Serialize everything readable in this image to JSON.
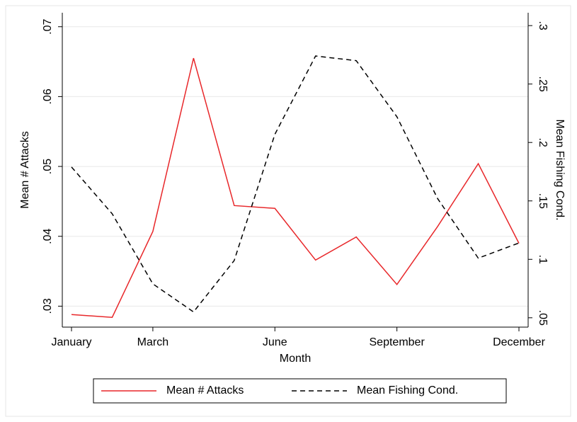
{
  "chart_data": {
    "type": "line",
    "x_label": "Month",
    "y_label": "Mean # Attacks",
    "y2_label": "Mean Fishing Cond.",
    "categories": [
      "January",
      null,
      "March",
      null,
      null,
      "June",
      null,
      null,
      "September",
      null,
      null,
      "December"
    ],
    "series": [
      {
        "name": "Mean # Attacks",
        "color": "#e8272a",
        "dash": false,
        "values": [
          0.0288,
          0.0284,
          0.0407,
          0.0655,
          0.0444,
          0.044,
          0.0366,
          0.0399,
          0.0331,
          0.0414,
          0.0504,
          0.039
        ]
      },
      {
        "name": "Mean Fishing Cond.",
        "color": "#000000",
        "dash": true,
        "axis": "y2",
        "values": [
          0.179,
          0.139,
          0.079,
          0.055,
          0.099,
          0.207,
          0.274,
          0.27,
          0.222,
          0.152,
          0.101,
          0.114
        ]
      }
    ],
    "ylim": [
      0.027,
      0.072
    ],
    "yticks": [
      {
        "value": 0.03,
        "label": ".03"
      },
      {
        "value": 0.04,
        "label": ".04"
      },
      {
        "value": 0.05,
        "label": ".05"
      },
      {
        "value": 0.06,
        "label": ".06"
      },
      {
        "value": 0.07,
        "label": ".07"
      }
    ],
    "y2lim": [
      0.042,
      0.311
    ],
    "y2ticks": [
      {
        "value": 0.05,
        "label": ".05"
      },
      {
        "value": 0.1,
        "label": ".1"
      },
      {
        "value": 0.15,
        "label": ".15"
      },
      {
        "value": 0.2,
        "label": ".2"
      },
      {
        "value": 0.25,
        "label": ".25"
      },
      {
        "value": 0.3,
        "label": ".3"
      }
    ],
    "grid": true,
    "legend": "bottom"
  }
}
